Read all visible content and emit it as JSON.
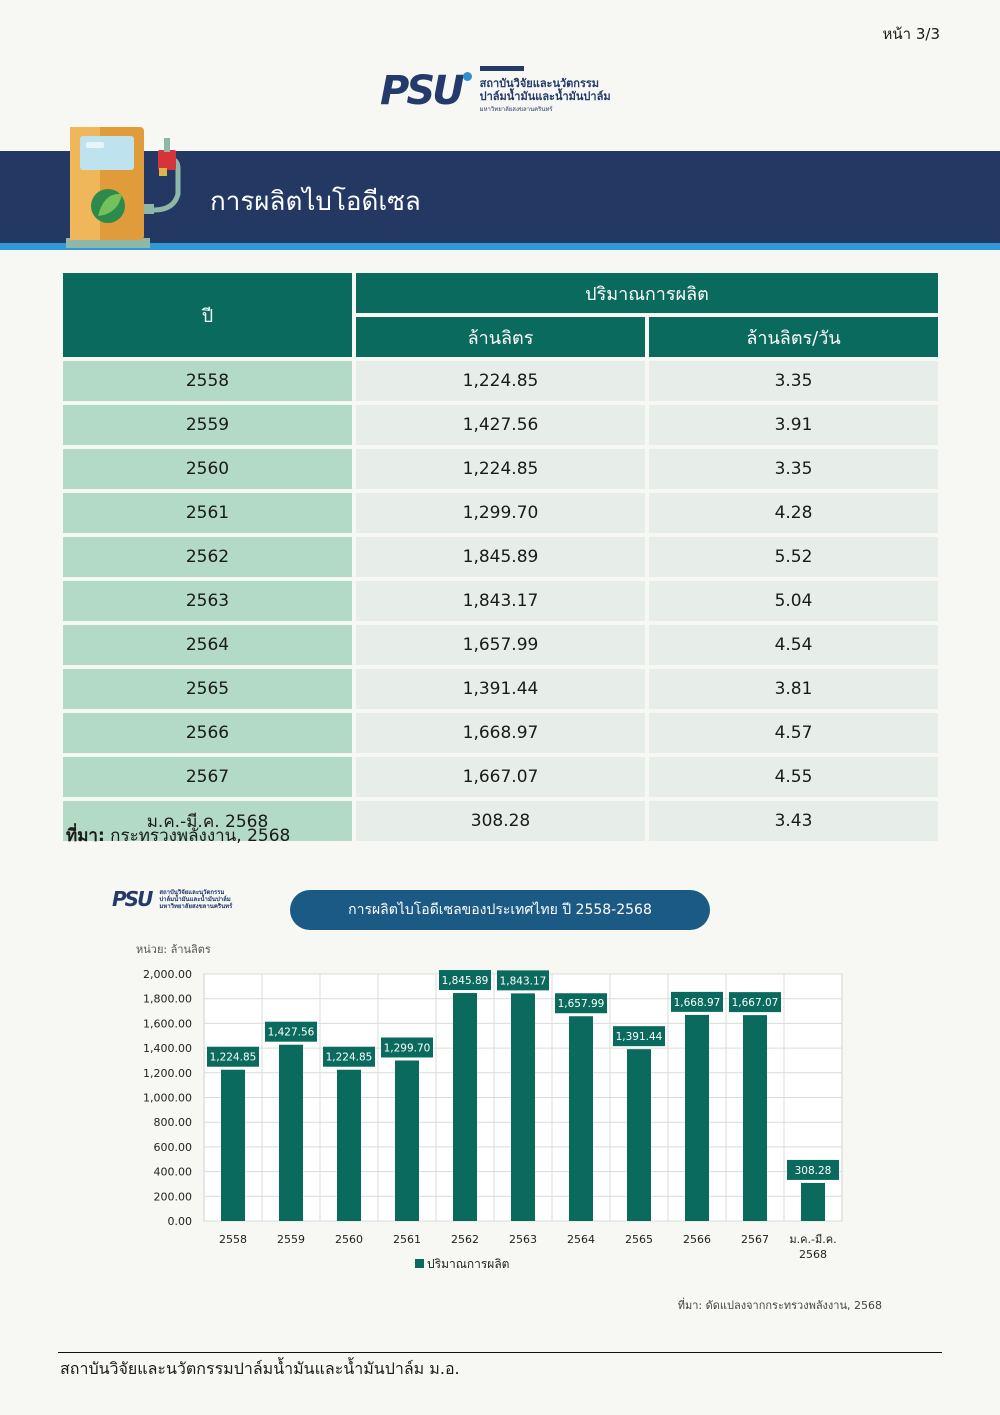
{
  "page_label": "หน้า 3/3",
  "logo": {
    "mark": "PSU",
    "line1": "สถาบันวิจัยและนวัตกรรม",
    "line2": "ปาล์มน้ำมันและน้ำมันปาล์ม",
    "line3": "มหาวิทยาลัยสงขลานครินทร์"
  },
  "banner_title": "การผลิตไบโอดีเซล",
  "table": {
    "col_year": "ปี",
    "col_group": "ปริมาณการผลิต",
    "col_million_liters": "ล้านลิตร",
    "col_million_liters_per_day": "ล้านลิตร/วัน",
    "rows": [
      {
        "year": "2558",
        "total": "1,224.85",
        "per_day": "3.35"
      },
      {
        "year": "2559",
        "total": "1,427.56",
        "per_day": "3.91"
      },
      {
        "year": "2560",
        "total": "1,224.85",
        "per_day": "3.35"
      },
      {
        "year": "2561",
        "total": "1,299.70",
        "per_day": "4.28"
      },
      {
        "year": "2562",
        "total": "1,845.89",
        "per_day": "5.52"
      },
      {
        "year": "2563",
        "total": "1,843.17",
        "per_day": "5.04"
      },
      {
        "year": "2564",
        "total": "1,657.99",
        "per_day": "4.54"
      },
      {
        "year": "2565",
        "total": "1,391.44",
        "per_day": "3.81"
      },
      {
        "year": "2566",
        "total": "1,668.97",
        "per_day": "4.57"
      },
      {
        "year": "2567",
        "total": "1,667.07",
        "per_day": "4.55"
      },
      {
        "year": "ม.ค.-มี.ค. 2568",
        "total": "308.28",
        "per_day": "3.43"
      }
    ]
  },
  "source": {
    "label": "ที่มา:",
    "text": "กระทรวงพลังงาน, 2568"
  },
  "chart_header": "การผลิตไบโอดีเซลของประเทศไทย ปี 2558-2568",
  "chart_unit": "หน่วย: ล้านลิตร",
  "chart_data": {
    "type": "bar",
    "categories": [
      "2558",
      "2559",
      "2560",
      "2561",
      "2562",
      "2563",
      "2564",
      "2565",
      "2566",
      "2567",
      "ม.ค.-มี.ค.|2568"
    ],
    "series": [
      {
        "name": "ปริมาณการผลิต",
        "values": [
          1224.85,
          1427.56,
          1224.85,
          1299.7,
          1845.89,
          1843.17,
          1657.99,
          1391.44,
          1668.97,
          1667.07,
          308.28
        ]
      }
    ],
    "value_labels": [
      "1,224.85",
      "1,427.56",
      "1,224.85",
      "1,299.70",
      "1,845.89",
      "1,843.17",
      "1,657.99",
      "1,391.44",
      "1,668.97",
      "1,667.07",
      "308.28"
    ],
    "yticks": [
      "0.00",
      "200.00",
      "400.00",
      "600.00",
      "800.00",
      "1,000.00",
      "1,200.00",
      "1,400.00",
      "1,600.00",
      "1,800.00",
      "2,000.00"
    ],
    "ylim": [
      0,
      2000
    ],
    "grid": true,
    "legend": "bottom",
    "bar_color": "#0b6a5e"
  },
  "chart_source": "ที่มา: ดัดแปลงจากกระทรวงพลังงาน, 2568",
  "footer": "สถาบันวิจัยและนวัตกรรมปาล์มน้ำมันและน้ำมันปาล์ม ม.อ."
}
